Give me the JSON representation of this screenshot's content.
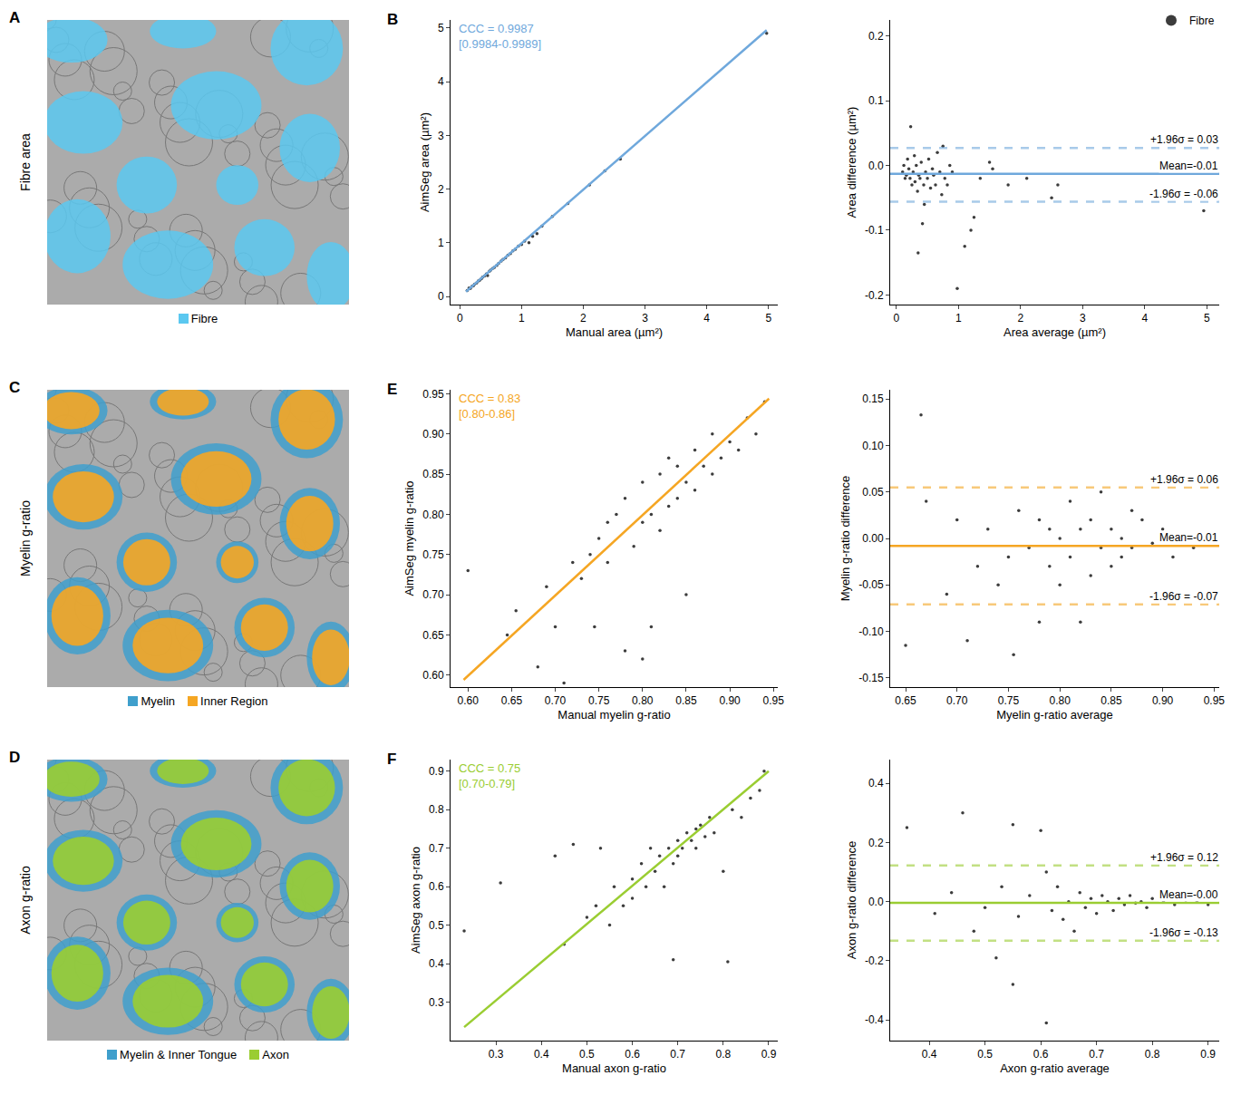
{
  "image_panels": [
    {
      "letter": "A",
      "row_label": "Fibre area",
      "legend": [
        {
          "name": "Fibre",
          "color": "#5bc8f0"
        }
      ]
    },
    {
      "letter": "C",
      "row_label": "Myelin g-ratio",
      "legend": [
        {
          "name": "Myelin",
          "color": "#3f9fcc"
        },
        {
          "name": "Inner Region",
          "color": "#f5a623"
        }
      ]
    },
    {
      "letter": "D",
      "row_label": "Axon g-ratio",
      "legend": [
        {
          "name": "Myelin & Inner Tongue",
          "color": "#3f9fcc"
        },
        {
          "name": "Axon",
          "color": "#9acd32"
        }
      ]
    }
  ],
  "chart_data": [
    {
      "type": "scatter",
      "letter": "B",
      "x_label": "Manual area (µm²)",
      "y_label": "AimSeg area (µm²)",
      "annotations": [
        "CCC = 0.9987",
        "[0.9984-0.9989]"
      ],
      "color": "#6fa8dc",
      "xlim": [
        -0.15,
        5.15
      ],
      "ylim": [
        -0.15,
        5.15
      ],
      "xticks": [
        0,
        1,
        2,
        3,
        4,
        5
      ],
      "yticks": [
        0,
        1,
        2,
        3,
        4,
        5
      ],
      "series": [
        {
          "type": "scatter",
          "color": "#3c3c3c",
          "x": [
            0.12,
            0.15,
            0.17,
            0.2,
            0.22,
            0.24,
            0.27,
            0.3,
            0.32,
            0.35,
            0.37,
            0.4,
            0.43,
            0.45,
            0.48,
            0.5,
            0.53,
            0.56,
            0.6,
            0.63,
            0.67,
            0.7,
            0.74,
            0.78,
            0.82,
            0.86,
            0.9,
            0.95,
            1.0,
            1.05,
            1.12,
            1.18,
            1.25,
            1.33,
            1.5,
            1.75,
            2.1,
            2.35,
            2.6,
            4.97
          ],
          "y": [
            0.11,
            0.16,
            0.15,
            0.19,
            0.2,
            0.23,
            0.25,
            0.29,
            0.3,
            0.33,
            0.36,
            0.38,
            0.42,
            0.39,
            0.47,
            0.49,
            0.52,
            0.54,
            0.58,
            0.62,
            0.66,
            0.69,
            0.72,
            0.77,
            0.8,
            0.85,
            0.88,
            0.94,
            0.97,
            1.03,
            1.0,
            1.12,
            1.17,
            1.31,
            1.49,
            1.73,
            2.08,
            2.34,
            2.56,
            4.9
          ]
        },
        {
          "type": "line",
          "color": "#6fa8dc",
          "x": [
            0.1,
            4.97
          ],
          "y": [
            0.09,
            4.96
          ]
        }
      ]
    },
    {
      "type": "scatter",
      "x_label": "Area average (µm²)",
      "y_label": "Area difference (µm²)",
      "legend": "top right",
      "color": "#6fa8dc",
      "xlim": [
        -0.1,
        5.2
      ],
      "ylim": [
        -0.215,
        0.225
      ],
      "xticks": [
        0,
        1,
        2,
        3,
        4,
        5
      ],
      "yticks": [
        -0.2,
        -0.1,
        {
          "value": 0,
          "label": "0.0"
        },
        0.1,
        0.2
      ],
      "reference_lines": [
        {
          "value": 0.027,
          "label": "+1.96σ = 0.03",
          "line_style": "dash"
        },
        {
          "value": -0.013,
          "label": "Mean=-0.01",
          "line_style": "solid"
        },
        {
          "value": -0.056,
          "label": "-1.96σ = -0.06",
          "line_style": "dash"
        }
      ],
      "series": [
        {
          "type": "scatter",
          "name": "Fibre",
          "color": "#3c3c3c",
          "x": [
            0.1,
            0.12,
            0.14,
            0.16,
            0.18,
            0.2,
            0.22,
            0.23,
            0.25,
            0.27,
            0.29,
            0.3,
            0.32,
            0.34,
            0.35,
            0.36,
            0.38,
            0.4,
            0.42,
            0.44,
            0.45,
            0.47,
            0.5,
            0.52,
            0.55,
            0.58,
            0.6,
            0.63,
            0.66,
            0.7,
            0.73,
            0.75,
            0.78,
            0.82,
            0.86,
            0.9,
            0.98,
            1.1,
            1.2,
            1.25,
            1.35,
            1.5,
            1.55,
            1.8,
            2.1,
            2.5,
            2.6,
            4.95
          ],
          "y": [
            -0.01,
            0.0,
            -0.02,
            -0.015,
            0.01,
            -0.005,
            -0.02,
            0.06,
            -0.03,
            -0.01,
            0.015,
            -0.025,
            0.0,
            -0.04,
            -0.135,
            -0.015,
            -0.02,
            0.005,
            -0.09,
            -0.03,
            -0.06,
            -0.01,
            -0.02,
            0.01,
            -0.035,
            -0.005,
            -0.015,
            -0.03,
            0.02,
            -0.01,
            -0.045,
            0.03,
            -0.02,
            -0.03,
            0.0,
            -0.01,
            -0.19,
            -0.125,
            -0.1,
            -0.08,
            -0.02,
            0.005,
            -0.005,
            -0.03,
            -0.02,
            -0.05,
            -0.03,
            -0.07
          ]
        }
      ]
    },
    {
      "type": "scatter",
      "letter": "E",
      "x_label": "Manual myelin g-ratio",
      "y_label": "AimSeg myelin g-ratio",
      "annotations": [
        "CCC = 0.83",
        "[0.80-0.86]"
      ],
      "color": "#f5a623",
      "xlim": [
        0.58,
        0.955
      ],
      "ylim": [
        0.585,
        0.955
      ],
      "xticks": [
        {
          "value": 0.6,
          "label": "0.60"
        },
        0.65,
        {
          "value": 0.7,
          "label": "0.70"
        },
        0.75,
        {
          "value": 0.8,
          "label": "0.80"
        },
        0.85,
        {
          "value": 0.9,
          "label": "0.90"
        },
        0.95
      ],
      "yticks": [
        {
          "value": 0.6,
          "label": "0.60"
        },
        0.65,
        {
          "value": 0.7,
          "label": "0.70"
        },
        0.75,
        {
          "value": 0.8,
          "label": "0.80"
        },
        0.85,
        {
          "value": 0.9,
          "label": "0.90"
        },
        0.95
      ],
      "series": [
        {
          "type": "scatter",
          "color": "#3c3c3c",
          "x": [
            0.6,
            0.645,
            0.655,
            0.68,
            0.69,
            0.7,
            0.71,
            0.72,
            0.73,
            0.74,
            0.745,
            0.75,
            0.76,
            0.76,
            0.77,
            0.78,
            0.78,
            0.79,
            0.8,
            0.8,
            0.8,
            0.81,
            0.81,
            0.82,
            0.82,
            0.83,
            0.83,
            0.84,
            0.84,
            0.85,
            0.85,
            0.86,
            0.86,
            0.87,
            0.88,
            0.88,
            0.89,
            0.9,
            0.91,
            0.92,
            0.93,
            0.94
          ],
          "y": [
            0.73,
            0.65,
            0.68,
            0.61,
            0.71,
            0.66,
            0.59,
            0.74,
            0.72,
            0.75,
            0.66,
            0.77,
            0.74,
            0.79,
            0.8,
            0.63,
            0.82,
            0.76,
            0.62,
            0.79,
            0.84,
            0.66,
            0.8,
            0.78,
            0.85,
            0.81,
            0.87,
            0.82,
            0.86,
            0.7,
            0.84,
            0.83,
            0.88,
            0.86,
            0.85,
            0.9,
            0.87,
            0.89,
            0.88,
            0.92,
            0.9,
            0.94
          ]
        },
        {
          "type": "line",
          "color": "#f5a623",
          "x": [
            0.595,
            0.945
          ],
          "y": [
            0.594,
            0.944
          ]
        }
      ]
    },
    {
      "type": "scatter",
      "x_label": "Myelin g-ratio average",
      "y_label": "Myelin g-ratio difference",
      "color": "#f5a623",
      "xlim": [
        0.635,
        0.955
      ],
      "ylim": [
        -0.16,
        0.16
      ],
      "xticks": [
        0.65,
        {
          "value": 0.7,
          "label": "0.70"
        },
        0.75,
        {
          "value": 0.8,
          "label": "0.80"
        },
        0.85,
        {
          "value": 0.9,
          "label": "0.90"
        },
        0.95
      ],
      "yticks": [
        -0.15,
        {
          "value": -0.1,
          "label": "-0.10"
        },
        -0.05,
        {
          "value": 0,
          "label": "0.00"
        },
        0.05,
        {
          "value": 0.1,
          "label": "0.10"
        },
        0.15
      ],
      "reference_lines": [
        {
          "value": 0.055,
          "label": "+1.96σ = 0.06",
          "line_style": "dash"
        },
        {
          "value": -0.008,
          "label": "Mean=-0.01",
          "line_style": "solid"
        },
        {
          "value": -0.071,
          "label": "-1.96σ = -0.07",
          "line_style": "dash"
        }
      ],
      "series": [
        {
          "type": "scatter",
          "color": "#3c3c3c",
          "x": [
            0.65,
            0.665,
            0.67,
            0.69,
            0.7,
            0.71,
            0.72,
            0.73,
            0.74,
            0.75,
            0.755,
            0.76,
            0.77,
            0.78,
            0.78,
            0.79,
            0.79,
            0.8,
            0.8,
            0.81,
            0.81,
            0.82,
            0.82,
            0.83,
            0.83,
            0.84,
            0.84,
            0.85,
            0.85,
            0.86,
            0.86,
            0.87,
            0.87,
            0.88,
            0.89,
            0.9,
            0.91,
            0.92,
            0.93,
            0.945
          ],
          "y": [
            -0.115,
            0.133,
            0.04,
            -0.06,
            0.02,
            -0.11,
            -0.03,
            0.01,
            -0.05,
            -0.02,
            -0.125,
            0.03,
            -0.01,
            -0.09,
            0.02,
            -0.03,
            0.01,
            -0.05,
            0.0,
            0.04,
            -0.02,
            -0.09,
            0.01,
            -0.04,
            0.02,
            -0.01,
            0.05,
            -0.03,
            0.01,
            0.0,
            -0.02,
            0.03,
            -0.01,
            0.02,
            -0.005,
            0.01,
            -0.02,
            0.005,
            -0.01,
            0.0
          ]
        }
      ]
    },
    {
      "type": "scatter",
      "letter": "F",
      "x_label": "Manual axon g-ratio",
      "y_label": "AimSeg axon g-ratio",
      "annotations": [
        "CCC = 0.75",
        "[0.70-0.79]"
      ],
      "color": "#9acd32",
      "xlim": [
        0.2,
        0.92
      ],
      "ylim": [
        0.2,
        0.93
      ],
      "xticks": [
        0.3,
        0.4,
        0.5,
        0.6,
        0.7,
        0.8,
        0.9
      ],
      "yticks": [
        0.3,
        0.4,
        0.5,
        0.6,
        0.7,
        0.8,
        0.9
      ],
      "series": [
        {
          "type": "scatter",
          "color": "#3c3c3c",
          "x": [
            0.23,
            0.31,
            0.43,
            0.45,
            0.47,
            0.5,
            0.52,
            0.53,
            0.55,
            0.56,
            0.58,
            0.6,
            0.6,
            0.62,
            0.63,
            0.64,
            0.65,
            0.66,
            0.67,
            0.68,
            0.69,
            0.69,
            0.7,
            0.7,
            0.71,
            0.72,
            0.73,
            0.74,
            0.74,
            0.75,
            0.76,
            0.77,
            0.78,
            0.8,
            0.81,
            0.82,
            0.84,
            0.86,
            0.88,
            0.89
          ],
          "y": [
            0.485,
            0.61,
            0.68,
            0.45,
            0.71,
            0.52,
            0.55,
            0.7,
            0.5,
            0.6,
            0.55,
            0.62,
            0.57,
            0.66,
            0.6,
            0.7,
            0.64,
            0.68,
            0.6,
            0.7,
            0.41,
            0.66,
            0.72,
            0.68,
            0.7,
            0.74,
            0.72,
            0.75,
            0.7,
            0.76,
            0.73,
            0.78,
            0.74,
            0.64,
            0.405,
            0.8,
            0.78,
            0.83,
            0.85,
            0.9
          ]
        },
        {
          "type": "line",
          "color": "#9acd32",
          "x": [
            0.23,
            0.9
          ],
          "y": [
            0.235,
            0.9
          ]
        }
      ]
    },
    {
      "type": "scatter",
      "x_label": "Axon g-ratio average",
      "y_label": "Axon g-ratio difference",
      "color": "#9acd32",
      "xlim": [
        0.33,
        0.92
      ],
      "ylim": [
        -0.47,
        0.48
      ],
      "xticks": [
        0.4,
        0.5,
        0.6,
        0.7,
        0.8,
        0.9
      ],
      "yticks": [
        -0.4,
        -0.2,
        {
          "value": 0,
          "label": "0.0"
        },
        0.2,
        0.4
      ],
      "reference_lines": [
        {
          "value": 0.122,
          "label": "+1.96σ = 0.12",
          "line_style": "dash"
        },
        {
          "value": -0.004,
          "label": "Mean=-0.00",
          "line_style": "solid"
        },
        {
          "value": -0.132,
          "label": "-1.96σ = -0.13",
          "line_style": "dash"
        }
      ],
      "series": [
        {
          "type": "scatter",
          "color": "#3c3c3c",
          "x": [
            0.36,
            0.41,
            0.44,
            0.46,
            0.48,
            0.5,
            0.52,
            0.53,
            0.55,
            0.55,
            0.56,
            0.58,
            0.6,
            0.61,
            0.61,
            0.62,
            0.63,
            0.64,
            0.65,
            0.66,
            0.67,
            0.68,
            0.69,
            0.7,
            0.71,
            0.72,
            0.73,
            0.74,
            0.75,
            0.76,
            0.77,
            0.78,
            0.79,
            0.8,
            0.82,
            0.84,
            0.86,
            0.88,
            0.9
          ],
          "y": [
            0.25,
            -0.04,
            0.03,
            0.3,
            -0.1,
            -0.02,
            -0.19,
            0.05,
            0.26,
            -0.28,
            -0.05,
            0.02,
            0.24,
            -0.41,
            0.1,
            -0.03,
            0.05,
            -0.06,
            0.0,
            -0.1,
            0.03,
            -0.02,
            0.01,
            -0.04,
            0.02,
            0.0,
            -0.03,
            0.01,
            -0.01,
            0.02,
            -0.005,
            0.0,
            -0.02,
            0.01,
            0.0,
            -0.01,
            0.005,
            0.0,
            -0.01
          ]
        }
      ]
    }
  ]
}
